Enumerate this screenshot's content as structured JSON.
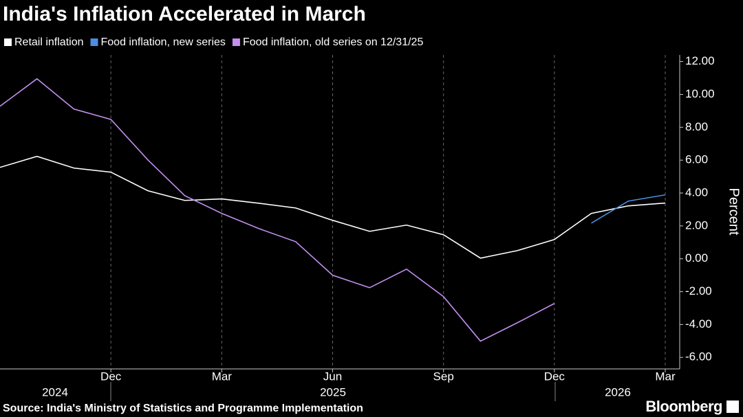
{
  "chart_data": {
    "type": "line",
    "title": "India's Inflation Accelerated in March",
    "categories": [
      null,
      null,
      null,
      "Dec",
      null,
      null,
      "Mar",
      null,
      null,
      "Jun",
      null,
      null,
      "Sep",
      null,
      null,
      "Dec",
      null,
      null,
      "Mar"
    ],
    "x_group_labels": [
      "2024",
      "2025",
      "2026"
    ],
    "series": [
      {
        "name": "Retail inflation",
        "color": "#ffffff",
        "values": [
          5.56,
          6.23,
          5.52,
          5.27,
          4.14,
          3.55,
          3.64,
          3.38,
          3.09,
          2.34,
          1.67,
          2.05,
          1.46,
          0.04,
          0.5,
          1.17,
          2.76,
          3.22,
          3.39
        ]
      },
      {
        "name": "Food inflation, new series",
        "color": "#4a8fe0",
        "values": [
          null,
          null,
          null,
          null,
          null,
          null,
          null,
          null,
          null,
          null,
          null,
          null,
          null,
          null,
          null,
          null,
          2.17,
          3.51,
          3.89
        ]
      },
      {
        "name": "Food inflation, old series on 12/31/25",
        "color": "#c38ff0",
        "values": [
          9.28,
          10.95,
          9.11,
          8.48,
          6.02,
          3.84,
          2.76,
          1.84,
          1.04,
          -1.0,
          -1.76,
          -0.63,
          -2.3,
          -5.01,
          -3.89,
          -2.72,
          null,
          null,
          null
        ]
      }
    ],
    "ylim": [
      -6.7,
      12.4
    ],
    "yticks": [
      {
        "value": 12,
        "label": "12.00"
      },
      {
        "value": 10,
        "label": "10.00"
      },
      {
        "value": 8,
        "label": "8.00"
      },
      {
        "value": 6,
        "label": "6.00"
      },
      {
        "value": 4,
        "label": "4.00"
      },
      {
        "value": 2,
        "label": "2.00"
      },
      {
        "value": 0,
        "label": "0.00"
      },
      {
        "value": -2,
        "label": "-2.00"
      },
      {
        "value": -4,
        "label": "-4.00"
      },
      {
        "value": -6,
        "label": "-6.00"
      }
    ],
    "y_label": "Percent",
    "y_axis_side": "right",
    "x_grid": true,
    "source": "Source: India's Ministry of Statistics and Programme Implementation",
    "logo": "Bloomberg"
  }
}
